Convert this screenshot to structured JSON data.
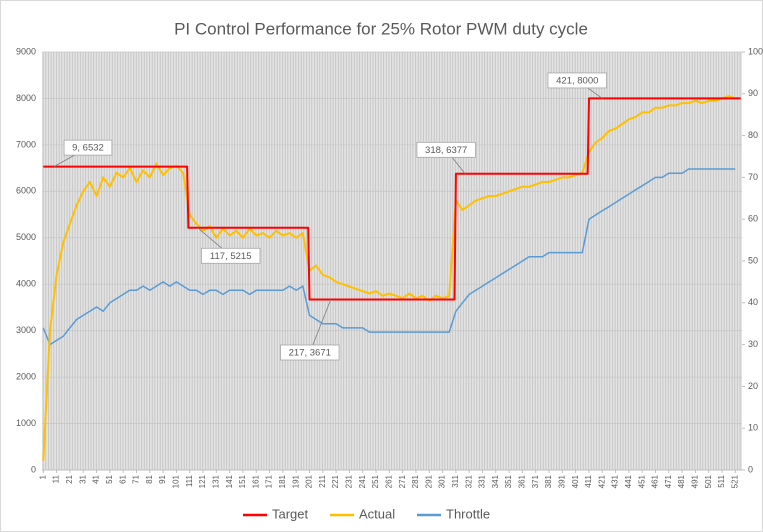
{
  "chart_data": {
    "type": "line",
    "title": "PI Control Performance for 25% Rotor PWM duty cycle",
    "xlim": [
      0,
      526
    ],
    "xticks": [
      1,
      11,
      21,
      31,
      41,
      51,
      61,
      71,
      81,
      91,
      101,
      111,
      121,
      131,
      141,
      151,
      161,
      171,
      181,
      191,
      201,
      211,
      221,
      231,
      241,
      251,
      261,
      271,
      281,
      291,
      301,
      311,
      321,
      331,
      341,
      351,
      361,
      371,
      381,
      391,
      401,
      411,
      421,
      431,
      441,
      451,
      461,
      471,
      481,
      491,
      501,
      511,
      521
    ],
    "ylim": [
      0,
      9000
    ],
    "yticks": [
      0,
      1000,
      2000,
      3000,
      4000,
      5000,
      6000,
      7000,
      8000,
      9000
    ],
    "y2lim": [
      0,
      100
    ],
    "y2ticks": [
      0,
      10,
      20,
      30,
      40,
      50,
      60,
      70,
      80,
      90,
      100
    ],
    "legend": "bottom",
    "series": [
      {
        "name": "Target",
        "color": "#ff0000",
        "x": [
          1,
          109,
          110,
          200,
          201,
          310,
          311,
          410,
          411,
          525
        ],
        "values": [
          6532,
          6532,
          5215,
          5215,
          3671,
          3671,
          6377,
          6377,
          8000,
          8000
        ]
      },
      {
        "name": "Actual",
        "color": "#ffc000",
        "x": [
          1,
          6,
          11,
          16,
          21,
          26,
          31,
          36,
          41,
          46,
          51,
          56,
          61,
          66,
          71,
          76,
          81,
          86,
          91,
          96,
          101,
          106,
          111,
          116,
          121,
          126,
          131,
          136,
          141,
          146,
          151,
          156,
          161,
          166,
          171,
          176,
          181,
          186,
          191,
          196,
          201,
          206,
          211,
          216,
          221,
          226,
          231,
          236,
          241,
          246,
          251,
          256,
          261,
          266,
          271,
          276,
          281,
          286,
          291,
          296,
          301,
          306,
          311,
          316,
          321,
          326,
          331,
          336,
          341,
          346,
          351,
          356,
          361,
          366,
          371,
          376,
          381,
          386,
          391,
          396,
          401,
          406,
          411,
          416,
          421,
          426,
          431,
          436,
          441,
          446,
          451,
          456,
          461,
          466,
          471,
          476,
          481,
          486,
          491,
          496,
          501,
          506,
          511,
          516,
          521
        ],
        "values": [
          200,
          3000,
          4200,
          4900,
          5300,
          5700,
          6000,
          6200,
          5900,
          6300,
          6100,
          6400,
          6300,
          6500,
          6200,
          6450,
          6300,
          6600,
          6350,
          6500,
          6550,
          6400,
          5500,
          5300,
          5150,
          5250,
          5000,
          5200,
          5050,
          5150,
          5000,
          5200,
          5050,
          5100,
          5000,
          5150,
          5050,
          5100,
          5000,
          5100,
          4300,
          4400,
          4200,
          4150,
          4050,
          4000,
          3950,
          3900,
          3850,
          3800,
          3850,
          3750,
          3800,
          3750,
          3700,
          3800,
          3700,
          3750,
          3650,
          3750,
          3700,
          3750,
          5800,
          5600,
          5700,
          5800,
          5850,
          5900,
          5900,
          5950,
          6000,
          6050,
          6100,
          6100,
          6150,
          6200,
          6200,
          6250,
          6300,
          6300,
          6350,
          6400,
          6850,
          7050,
          7150,
          7300,
          7350,
          7450,
          7550,
          7600,
          7700,
          7700,
          7800,
          7800,
          7850,
          7850,
          7900,
          7900,
          7950,
          7900,
          7950,
          7950,
          8000,
          8050,
          8000
        ]
      },
      {
        "name": "Throttle",
        "color": "#5b9bd5",
        "axis": "y2",
        "x": [
          1,
          6,
          11,
          16,
          21,
          26,
          31,
          36,
          41,
          46,
          51,
          56,
          61,
          66,
          71,
          76,
          81,
          86,
          91,
          96,
          101,
          106,
          111,
          116,
          121,
          126,
          131,
          136,
          141,
          146,
          151,
          156,
          161,
          166,
          171,
          176,
          181,
          186,
          191,
          196,
          201,
          206,
          211,
          216,
          221,
          226,
          231,
          236,
          241,
          246,
          251,
          256,
          261,
          266,
          271,
          276,
          281,
          286,
          291,
          296,
          301,
          306,
          311,
          316,
          321,
          326,
          331,
          336,
          341,
          346,
          351,
          356,
          361,
          366,
          371,
          376,
          381,
          386,
          391,
          396,
          401,
          406,
          411,
          416,
          421,
          426,
          431,
          436,
          441,
          446,
          451,
          456,
          461,
          466,
          471,
          476,
          481,
          486,
          491,
          496,
          501,
          506,
          511,
          516,
          521
        ],
        "values": [
          34,
          30,
          31,
          32,
          34,
          36,
          37,
          38,
          39,
          38,
          40,
          41,
          42,
          43,
          43,
          44,
          43,
          44,
          45,
          44,
          45,
          44,
          43,
          43,
          42,
          43,
          43,
          42,
          43,
          43,
          43,
          42,
          43,
          43,
          43,
          43,
          43,
          44,
          43,
          44,
          37,
          36,
          35,
          35,
          35,
          34,
          34,
          34,
          34,
          33,
          33,
          33,
          33,
          33,
          33,
          33,
          33,
          33,
          33,
          33,
          33,
          33,
          38,
          40,
          42,
          43,
          44,
          45,
          46,
          47,
          48,
          49,
          50,
          51,
          51,
          51,
          52,
          52,
          52,
          52,
          52,
          52,
          60,
          61,
          62,
          63,
          64,
          65,
          66,
          67,
          68,
          69,
          70,
          70,
          71,
          71,
          71,
          72,
          72,
          72,
          72,
          72,
          72,
          72,
          72
        ]
      }
    ],
    "annotations": [
      {
        "label": "9, 6532",
        "x": 9,
        "y": 6532
      },
      {
        "label": "117, 5215",
        "x": 117,
        "y": 5215
      },
      {
        "label": "217, 3671",
        "x": 217,
        "y": 3671
      },
      {
        "label": "318, 6377",
        "x": 318,
        "y": 6377
      },
      {
        "label": "421, 8000",
        "x": 421,
        "y": 8000
      }
    ]
  }
}
